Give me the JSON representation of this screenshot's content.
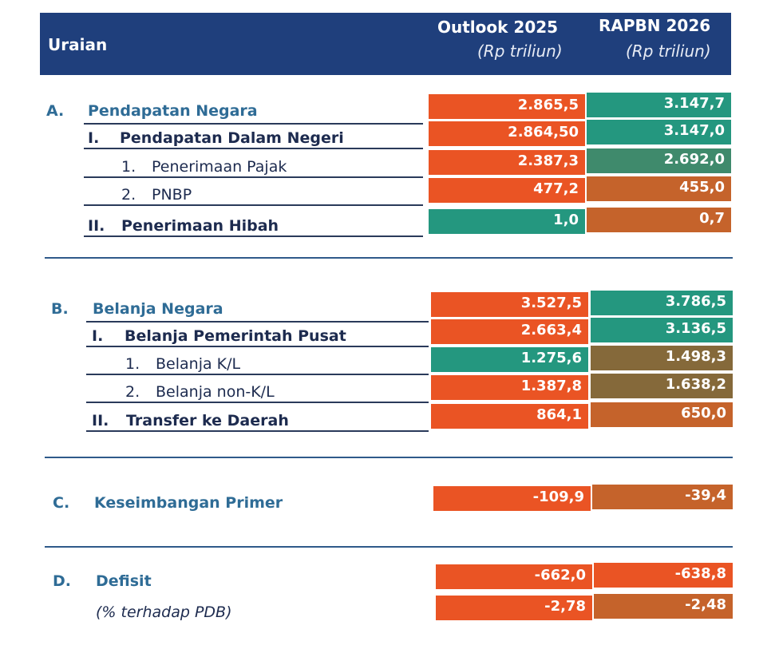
{
  "header": {
    "label": "Uraian",
    "col1_title": "Outlook 2025",
    "col1_unit": "(Rp triliun)",
    "col2_title": "RAPBN 2026",
    "col2_unit": "(Rp triliun)"
  },
  "colors": {
    "orange": "#ea5424",
    "teal": "#24977f",
    "green": "#3f8a6c",
    "brown": "#c5632b",
    "olive": "#85693a",
    "navy": "#1f3f7c"
  },
  "sections": [
    {
      "rows": [
        {
          "num": "A.",
          "label": "Pendapatan Negara",
          "style": "sec",
          "v1": "2.865,5",
          "c1": "orange",
          "v2": "3.147,7",
          "c2": "teal"
        },
        {
          "num": "I.",
          "label": "Pendapatan Dalam Negeri",
          "style": "b",
          "v1": "2.864,50",
          "c1": "orange",
          "v2": "3.147,0",
          "c2": "teal"
        },
        {
          "num": "1.",
          "label": "Penerimaan Pajak",
          "style": "n",
          "v1": "2.387,3",
          "c1": "orange",
          "v2": "2.692,0",
          "c2": "green"
        },
        {
          "num": "2.",
          "label": "PNBP",
          "style": "n",
          "v1": "477,2",
          "c1": "orange",
          "v2": "455,0",
          "c2": "brown"
        },
        {
          "num": "II.",
          "label": "Penerimaan Hibah",
          "style": "b",
          "v1": "1,0",
          "c1": "teal",
          "v2": "0,7",
          "c2": "brown"
        }
      ]
    },
    {
      "rows": [
        {
          "num": "B.",
          "label": "Belanja Negara",
          "style": "sec",
          "v1": "3.527,5",
          "c1": "orange",
          "v2": "3.786,5",
          "c2": "teal"
        },
        {
          "num": "I.",
          "label": "Belanja Pemerintah Pusat",
          "style": "b",
          "v1": "2.663,4",
          "c1": "orange",
          "v2": "3.136,5",
          "c2": "teal"
        },
        {
          "num": "1.",
          "label": "Belanja K/L",
          "style": "n",
          "v1": "1.275,6",
          "c1": "teal",
          "v2": "1.498,3",
          "c2": "olive"
        },
        {
          "num": "2.",
          "label": "Belanja non-K/L",
          "style": "n",
          "v1": "1.387,8",
          "c1": "orange",
          "v2": "1.638,2",
          "c2": "olive"
        },
        {
          "num": "II.",
          "label": "Transfer ke Daerah",
          "style": "b",
          "v1": "864,1",
          "c1": "orange",
          "v2": "650,0",
          "c2": "brown"
        }
      ]
    },
    {
      "rows": [
        {
          "num": "C.",
          "label": "Keseimbangan Primer",
          "style": "sec",
          "v1": "-109,9",
          "c1": "orange",
          "v2": "-39,4",
          "c2": "brown"
        }
      ]
    },
    {
      "rows": [
        {
          "num": "D.",
          "label": "Defisit",
          "style": "sec",
          "v1": "-662,0",
          "c1": "orange",
          "v2": "-638,8",
          "c2": "orange"
        },
        {
          "num": "",
          "label": "(% terhadap PDB)",
          "style": "i",
          "v1": "-2,78",
          "c1": "orange",
          "v2": "-2,48",
          "c2": "brown"
        }
      ]
    }
  ]
}
